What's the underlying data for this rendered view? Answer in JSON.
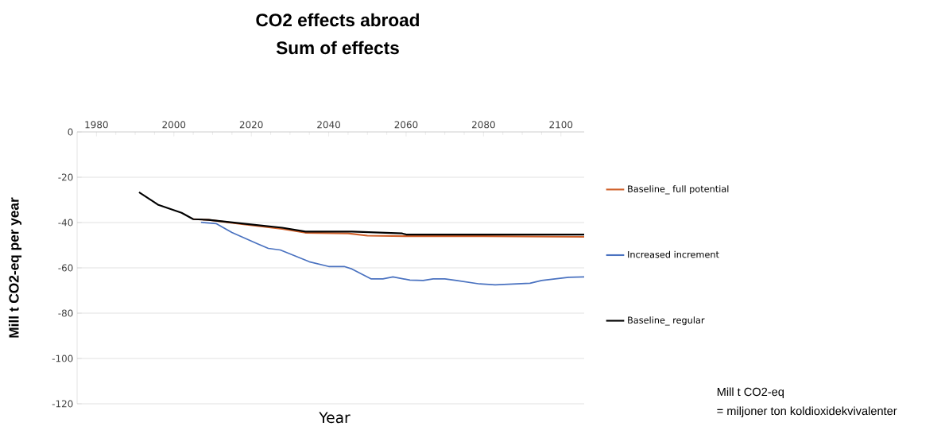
{
  "chart_data": {
    "type": "line",
    "title": "CO2 effects abroad",
    "subtitle": "Sum of effects",
    "xlabel": "Year",
    "ylabel": "Mill t CO2-eq per year",
    "annotations": [
      "Mill t CO2-eq",
      "= miljoner ton koldioxidekvivalenter"
    ],
    "xlim": [
      1975,
      2106
    ],
    "xticks": [
      1980,
      2000,
      2020,
      2040,
      2060,
      2080,
      2100
    ],
    "ylim": [
      -120,
      0
    ],
    "yticks": [
      -120,
      -100,
      -80,
      -60,
      -40,
      -20,
      0
    ],
    "grid": "y",
    "legend": "right",
    "marker": "none",
    "line_style": "solid",
    "series": [
      {
        "name": "Baseline_ full potential",
        "color": "#d0602a",
        "x": [
          2005,
          2009,
          2018,
          2028,
          2034,
          2045,
          2050,
          2060,
          2080,
          2106
        ],
        "values": [
          -38.5,
          -38.8,
          -40.8,
          -42.8,
          -44.5,
          -44.8,
          -45.8,
          -46,
          -46,
          -46.3
        ]
      },
      {
        "name": "Increased increment",
        "color": "#4a72c0",
        "x": [
          2007,
          2011,
          2015,
          2021.5,
          2024.4,
          2027.5,
          2035,
          2040,
          2044,
          2046,
          2051,
          2054,
          2056.6,
          2061,
          2064.4,
          2067,
          2070,
          2073,
          2079,
          2083,
          2092,
          2095,
          2102,
          2106
        ],
        "values": [
          -39.9,
          -40.5,
          -44.4,
          -49.3,
          -51.4,
          -52.1,
          -57.3,
          -59.4,
          -59.4,
          -60.5,
          -64.9,
          -64.9,
          -64,
          -65.4,
          -65.6,
          -64.9,
          -64.9,
          -65.6,
          -67.1,
          -67.5,
          -66.8,
          -65.6,
          -64.2,
          -64
        ]
      },
      {
        "name": "Baseline_ regular",
        "color": "#000000",
        "x": [
          1991,
          1996,
          2002,
          2005,
          2009,
          2018,
          2028,
          2034,
          2046,
          2059,
          2060,
          2106
        ],
        "values": [
          -26.6,
          -32.2,
          -35.7,
          -38.5,
          -38.8,
          -40.5,
          -42.3,
          -44,
          -44,
          -44.8,
          -45.3,
          -45.3
        ]
      }
    ]
  }
}
